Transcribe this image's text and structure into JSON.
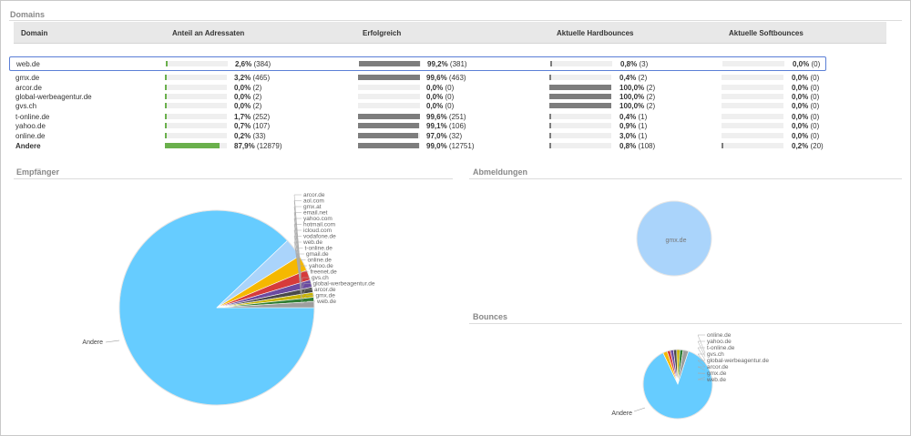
{
  "sections": {
    "domains": "Domains",
    "empfaenger": "Empfänger",
    "abmeldungen": "Abmeldungen",
    "bounces": "Bounces"
  },
  "columns": [
    "Domain",
    "Anteil an Adressaten",
    "Erfolgreich",
    "Aktuelle Hardbounces",
    "Aktuelle Softbounces"
  ],
  "colors": {
    "green": "#6ab04c",
    "grey": "#7d7d7d",
    "selection": "#5b7fd6",
    "pie_main": "#66ccff",
    "pie_light": "#aad4fb"
  },
  "rows": [
    {
      "domain": "web.de",
      "anteil": {
        "pct": "2,6%",
        "count": "(384)",
        "frac": 0.026
      },
      "erfolgreich": {
        "pct": "99,2%",
        "count": "(381)",
        "frac": 0.992
      },
      "hard": {
        "pct": "0,8%",
        "count": "(3)",
        "frac": 0.008
      },
      "soft": {
        "pct": "0,0%",
        "count": "(0)",
        "frac": 0
      }
    },
    {
      "domain": "gmx.de",
      "anteil": {
        "pct": "3,2%",
        "count": "(465)",
        "frac": 0.032
      },
      "erfolgreich": {
        "pct": "99,6%",
        "count": "(463)",
        "frac": 0.996
      },
      "hard": {
        "pct": "0,4%",
        "count": "(2)",
        "frac": 0.004
      },
      "soft": {
        "pct": "0,0%",
        "count": "(0)",
        "frac": 0
      }
    },
    {
      "domain": "arcor.de",
      "anteil": {
        "pct": "0,0%",
        "count": "(2)",
        "frac": 0
      },
      "erfolgreich": {
        "pct": "0,0%",
        "count": "(0)",
        "frac": 0
      },
      "hard": {
        "pct": "100,0%",
        "count": "(2)",
        "frac": 1
      },
      "soft": {
        "pct": "0,0%",
        "count": "(0)",
        "frac": 0
      }
    },
    {
      "domain": "global-werbeagentur.de",
      "anteil": {
        "pct": "0,0%",
        "count": "(2)",
        "frac": 0
      },
      "erfolgreich": {
        "pct": "0,0%",
        "count": "(0)",
        "frac": 0
      },
      "hard": {
        "pct": "100,0%",
        "count": "(2)",
        "frac": 1
      },
      "soft": {
        "pct": "0,0%",
        "count": "(0)",
        "frac": 0
      }
    },
    {
      "domain": "gvs.ch",
      "anteil": {
        "pct": "0,0%",
        "count": "(2)",
        "frac": 0
      },
      "erfolgreich": {
        "pct": "0,0%",
        "count": "(0)",
        "frac": 0
      },
      "hard": {
        "pct": "100,0%",
        "count": "(2)",
        "frac": 1
      },
      "soft": {
        "pct": "0,0%",
        "count": "(0)",
        "frac": 0
      }
    },
    {
      "domain": "t-online.de",
      "anteil": {
        "pct": "1,7%",
        "count": "(252)",
        "frac": 0.017
      },
      "erfolgreich": {
        "pct": "99,6%",
        "count": "(251)",
        "frac": 0.996
      },
      "hard": {
        "pct": "0,4%",
        "count": "(1)",
        "frac": 0.004
      },
      "soft": {
        "pct": "0,0%",
        "count": "(0)",
        "frac": 0
      }
    },
    {
      "domain": "yahoo.de",
      "anteil": {
        "pct": "0,7%",
        "count": "(107)",
        "frac": 0.007
      },
      "erfolgreich": {
        "pct": "99,1%",
        "count": "(106)",
        "frac": 0.991
      },
      "hard": {
        "pct": "0,9%",
        "count": "(1)",
        "frac": 0.009
      },
      "soft": {
        "pct": "0,0%",
        "count": "(0)",
        "frac": 0
      }
    },
    {
      "domain": "online.de",
      "anteil": {
        "pct": "0,2%",
        "count": "(33)",
        "frac": 0.002
      },
      "erfolgreich": {
        "pct": "97,0%",
        "count": "(32)",
        "frac": 0.97
      },
      "hard": {
        "pct": "3,0%",
        "count": "(1)",
        "frac": 0.03
      },
      "soft": {
        "pct": "0,0%",
        "count": "(0)",
        "frac": 0
      }
    },
    {
      "domain": "Andere",
      "anteil": {
        "pct": "87,9%",
        "count": "(12879)",
        "frac": 0.879
      },
      "erfolgreich": {
        "pct": "99,0%",
        "count": "(12751)",
        "frac": 0.99
      },
      "hard": {
        "pct": "0,8%",
        "count": "(108)",
        "frac": 0.008
      },
      "soft": {
        "pct": "0,2%",
        "count": "(20)",
        "frac": 0.002
      }
    }
  ],
  "empfaenger_pie": {
    "main_label": "Andere",
    "small_labels": [
      "arcor.de",
      "aol.com",
      "gmx.at",
      "email.net",
      "yahoo.com",
      "hotmail.com",
      "icloud.com",
      "vodafone.de",
      "web.de",
      "t-online.de",
      "gmail.de",
      "online.de",
      "yahoo.de",
      "freenet.de",
      "gvs.ch",
      "global-werbeagentur.de",
      "arcor.de",
      "gmx.de",
      "web.de"
    ],
    "slices": [
      {
        "frac": 0.879,
        "color": "#66ccff"
      },
      {
        "frac": 0.032,
        "color": "#aad4fb"
      },
      {
        "frac": 0.026,
        "color": "#f5b800"
      },
      {
        "frac": 0.017,
        "color": "#d63b3b"
      },
      {
        "frac": 0.012,
        "color": "#6b4aa0"
      },
      {
        "frac": 0.009,
        "color": "#4a4a4a"
      },
      {
        "frac": 0.008,
        "color": "#c8b400"
      },
      {
        "frac": 0.007,
        "color": "#2e7d32"
      },
      {
        "frac": 0.01,
        "color": "#9e9e9e"
      }
    ]
  },
  "abmeldungen_pie": {
    "label": "gmx.de"
  },
  "bounces_pie": {
    "main_label": "Andere",
    "small_labels": [
      "online.de",
      "yahoo.de",
      "t-online.de",
      "gvs.ch",
      "global-werbeagentur.de",
      "arcor.de",
      "gmx.de",
      "web.de"
    ],
    "slices": [
      {
        "frac": 0.88,
        "color": "#66ccff"
      },
      {
        "frac": 0.02,
        "color": "#f5b800"
      },
      {
        "frac": 0.015,
        "color": "#d63b3b"
      },
      {
        "frac": 0.015,
        "color": "#6b4aa0"
      },
      {
        "frac": 0.015,
        "color": "#4a4a4a"
      },
      {
        "frac": 0.015,
        "color": "#c8b400"
      },
      {
        "frac": 0.015,
        "color": "#2e7d32"
      },
      {
        "frac": 0.025,
        "color": "#9e9e9e"
      }
    ]
  }
}
